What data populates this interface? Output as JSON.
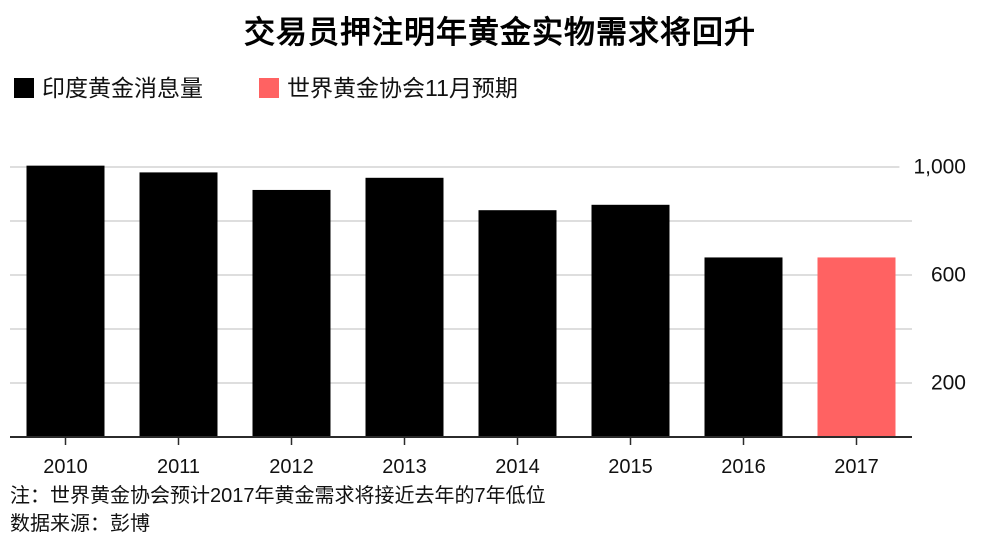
{
  "chart_data": {
    "type": "bar",
    "title": "交易员押注明年黄金实物需求将回升",
    "categories": [
      "2010",
      "2011",
      "2012",
      "2013",
      "2014",
      "2015",
      "2016",
      "2017"
    ],
    "series": [
      {
        "name": "印度黄金消息量",
        "color": "#000000",
        "values": [
          1005,
          980,
          915,
          960,
          840,
          860,
          665,
          null
        ]
      },
      {
        "name": "世界黄金协会11月预期",
        "color": "#ff6262",
        "values": [
          null,
          null,
          null,
          null,
          null,
          null,
          null,
          665
        ]
      }
    ],
    "ylim": [
      0,
      1000
    ],
    "yaxis": {
      "position": "right",
      "gridlines": [
        200,
        400,
        600,
        800,
        1000
      ],
      "tick_labels": [
        {
          "value": 1000,
          "label": "1,000"
        },
        {
          "value": 600,
          "label": "600"
        },
        {
          "value": 200,
          "label": "200"
        }
      ]
    },
    "grid": true,
    "legend_position": "top-left",
    "notes": [
      "注：世界黄金协会预计2017年黄金需求将接近去年的7年低位",
      "数据来源：彭博"
    ]
  }
}
